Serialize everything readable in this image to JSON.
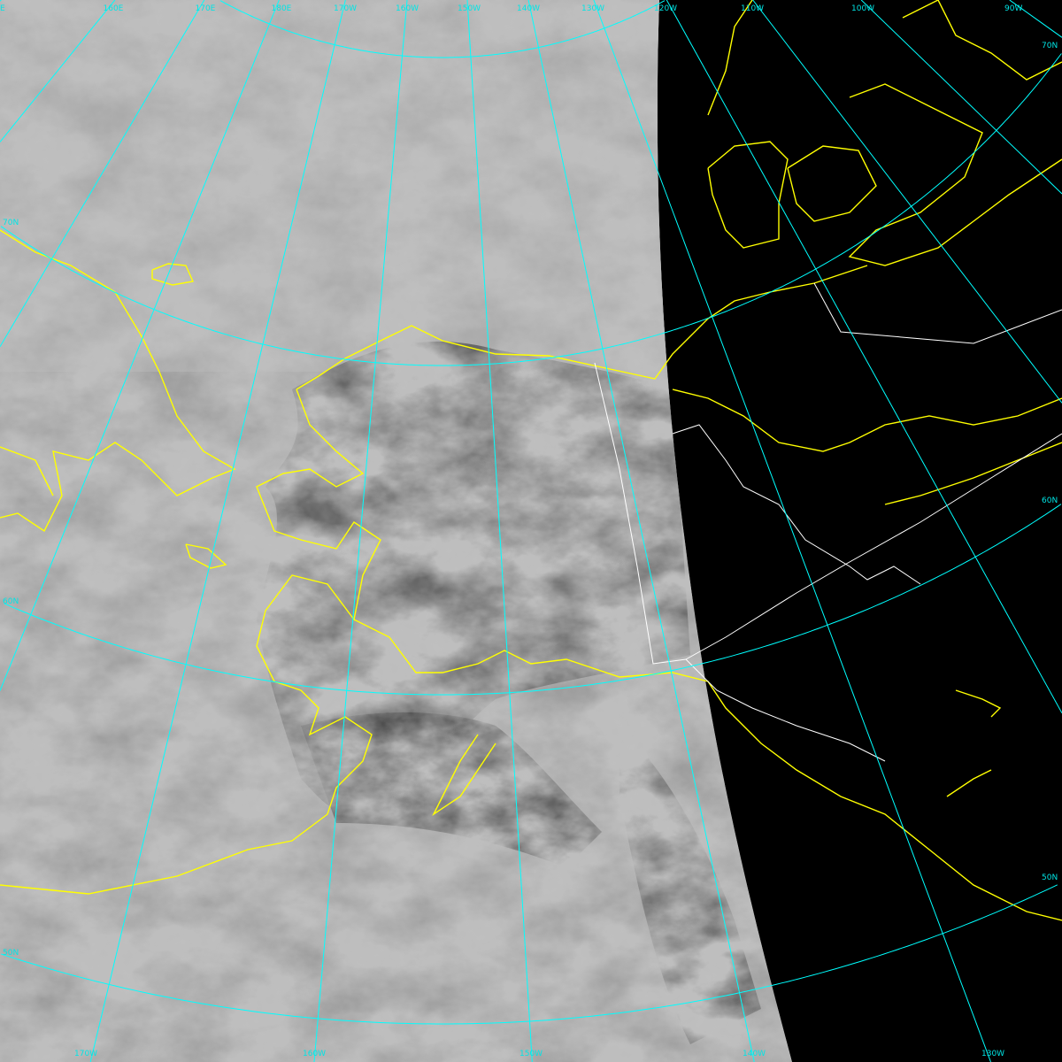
{
  "image": {
    "type": "satellite-visible-composite",
    "colors": {
      "graticule": "#00ffff",
      "coastline": "#ffff00",
      "borders": "#ffffff",
      "space": "#000000",
      "cloud": "#bdbdbd"
    }
  },
  "graticule": {
    "meridians_top": [
      "E",
      "160E",
      "170E",
      "180E",
      "170W",
      "160W",
      "150W",
      "140W",
      "130W",
      "120W",
      "110W",
      "100W",
      "90W"
    ],
    "meridians_bottom": [
      "170W",
      "160W",
      "150W",
      "140W",
      "130W"
    ],
    "parallels_left": [
      "70N",
      "60N",
      "50N"
    ],
    "parallels_right": [
      "70N",
      "60N",
      "50N"
    ]
  }
}
